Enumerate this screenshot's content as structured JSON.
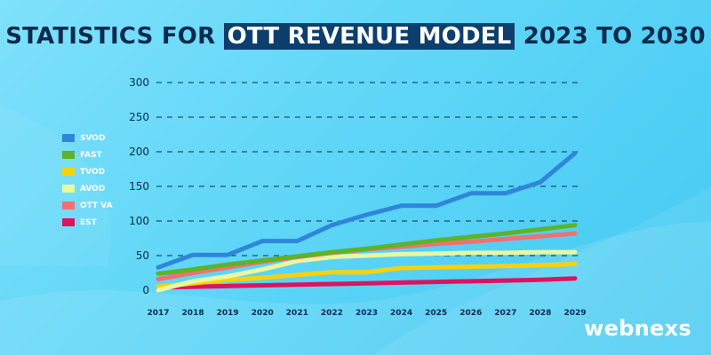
{
  "title": {
    "prefix": "STATISTICS FOR",
    "highlight": "OTT REVENUE MODEL",
    "suffix": "2023 TO 2030"
  },
  "brand": "webnexs",
  "chart_data": {
    "type": "line",
    "title": "STATISTICS FOR OTT REVENUE MODEL 2023 TO 2030",
    "xlabel": "",
    "ylabel": "",
    "x": [
      "2017",
      "2018",
      "2019",
      "2020",
      "2021",
      "2022",
      "2023",
      "2024",
      "2025",
      "2026",
      "2027",
      "2028",
      "2029"
    ],
    "yticks": [
      "0",
      "50",
      "100",
      "150",
      "200",
      "250",
      "300"
    ],
    "ylim": [
      0,
      300
    ],
    "grid": true,
    "legend_position": "left",
    "series": [
      {
        "name": "SVOD",
        "color": "#2f86d9",
        "values": [
          33,
          51,
          51,
          71,
          71,
          94,
          109,
          122,
          122,
          140,
          140,
          156,
          198
        ]
      },
      {
        "name": "FAST",
        "color": "#5fb327",
        "values": [
          24,
          30,
          37,
          43,
          49,
          55,
          60,
          66,
          72,
          77,
          82,
          88,
          94
        ]
      },
      {
        "name": "TVOD",
        "color": "#f9d10a",
        "values": [
          5,
          10,
          15,
          18,
          22,
          26,
          26,
          32,
          33,
          34,
          35,
          36,
          38
        ]
      },
      {
        "name": "AVOD",
        "color": "#e8f8a0",
        "values": [
          0,
          13,
          20,
          30,
          42,
          48,
          50,
          52,
          53,
          54,
          54,
          55,
          55
        ]
      },
      {
        "name": "OTT VA",
        "color": "#f46f71",
        "values": [
          16,
          25,
          33,
          41,
          48,
          54,
          59,
          63,
          67,
          70,
          74,
          78,
          82
        ]
      },
      {
        "name": "EST",
        "color": "#e0125f",
        "values": [
          4,
          5,
          6,
          7,
          8,
          9,
          10,
          11,
          12,
          13,
          14,
          15,
          17
        ]
      }
    ]
  }
}
